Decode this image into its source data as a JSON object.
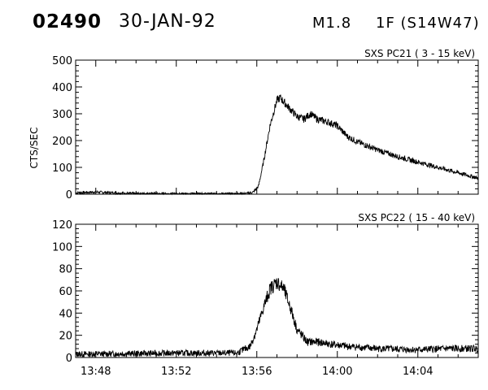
{
  "header": {
    "event_id": "02490",
    "date": "30-JAN-92",
    "goes_class": "M1.8",
    "optical": "1F (S14W47)"
  },
  "chart_data": [
    {
      "type": "line",
      "title": "SXS PC21  (  3 - 15 keV)",
      "ylabel": "CTS/SEC",
      "xlabel": "",
      "xlim": [
        "13:47:00",
        "14:07:00"
      ],
      "ylim": [
        0,
        500
      ],
      "yticks": [
        0,
        100,
        200,
        300,
        400,
        500
      ],
      "ytick_labels": [
        "0",
        "100",
        "200",
        "300",
        "400",
        "500"
      ],
      "x_keyframes": [
        "13:47:00",
        "13:48:00",
        "13:50:00",
        "13:52:00",
        "13:54:00",
        "13:55:00",
        "13:55:30",
        "13:55:50",
        "13:56:05",
        "13:56:20",
        "13:56:40",
        "13:57:00",
        "13:57:10",
        "13:57:30",
        "13:58:00",
        "13:58:20",
        "13:58:40",
        "13:59:00",
        "13:59:30",
        "14:00:00",
        "14:00:30",
        "14:01:00",
        "14:02:00",
        "14:03:00",
        "14:04:00",
        "14:05:00",
        "14:06:00",
        "14:07:00"
      ],
      "y_keyframes": [
        5,
        8,
        2,
        1,
        1,
        1,
        2,
        8,
        30,
        120,
        260,
        350,
        360,
        330,
        290,
        280,
        300,
        280,
        270,
        255,
        215,
        195,
        165,
        140,
        120,
        100,
        80,
        60
      ],
      "noise_amplitude": 12,
      "grid": false,
      "legend": "none"
    },
    {
      "type": "line",
      "title": "SXS PC22  ( 15 - 40 keV)",
      "ylabel": "",
      "xlabel": "",
      "xlim": [
        "13:47:00",
        "14:07:00"
      ],
      "ylim": [
        0,
        120
      ],
      "yticks": [
        0,
        20,
        40,
        60,
        80,
        100,
        120
      ],
      "ytick_labels": [
        "0",
        "20",
        "40",
        "60",
        "80",
        "100",
        "120"
      ],
      "xtick_labels": [
        "13:48",
        "13:52",
        "13:56",
        "14:00",
        "14:04"
      ],
      "x_keyframes": [
        "13:47:00",
        "13:52:00",
        "13:55:00",
        "13:55:40",
        "13:56:00",
        "13:56:20",
        "13:56:40",
        "13:57:00",
        "13:57:20",
        "13:57:40",
        "13:58:00",
        "13:58:30",
        "13:59:00",
        "13:59:40",
        "14:00:30",
        "14:02:00",
        "14:04:00",
        "14:05:30",
        "14:07:00"
      ],
      "y_keyframes": [
        3,
        4,
        4,
        10,
        25,
        45,
        62,
        68,
        62,
        45,
        25,
        14,
        14,
        12,
        10,
        8,
        7,
        8,
        8
      ],
      "noise_amplitude": 6,
      "grid": false,
      "legend": "none"
    }
  ]
}
